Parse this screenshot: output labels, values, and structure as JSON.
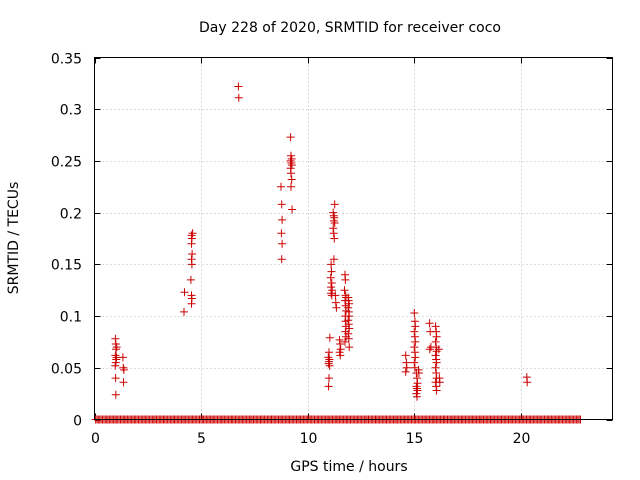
{
  "chart_data": {
    "type": "scatter",
    "title": "Day 228 of 2020, SRMTID for receiver coco",
    "xlabel": "GPS time / hours",
    "ylabel": "SRMTID / TECUs",
    "xlim": [
      0,
      24.3
    ],
    "ylim": [
      0,
      0.35
    ],
    "xticks": [
      0,
      5,
      10,
      15,
      20
    ],
    "xtick_labels": [
      "0",
      "5",
      "10",
      "15",
      "20"
    ],
    "yticks": [
      0,
      0.05,
      0.1,
      0.15,
      0.2,
      0.25,
      0.3,
      0.35
    ],
    "ytick_labels": [
      "0",
      "0.05",
      "0.1",
      "0.15",
      "0.2",
      "0.25",
      "0.3",
      "0.35"
    ],
    "grid": true,
    "marker": "+",
    "marker_color": "#cc0000",
    "baseline": {
      "x_start": 0.05,
      "x_end": 22.85,
      "x_step": 0.065,
      "y": 0
    },
    "points": [
      [
        0.98,
        0.078
      ],
      [
        1.0,
        0.073
      ],
      [
        1.01,
        0.068
      ],
      [
        0.98,
        0.062
      ],
      [
        1.02,
        0.058
      ],
      [
        1.0,
        0.055
      ],
      [
        0.97,
        0.052
      ],
      [
        1.03,
        0.06
      ],
      [
        0.99,
        0.04
      ],
      [
        1.0,
        0.024
      ],
      [
        1.04,
        0.07
      ],
      [
        1.33,
        0.06
      ],
      [
        1.35,
        0.05
      ],
      [
        1.38,
        0.048
      ],
      [
        1.36,
        0.036
      ],
      [
        4.22,
        0.123
      ],
      [
        4.2,
        0.104
      ],
      [
        4.55,
        0.178
      ],
      [
        4.57,
        0.175
      ],
      [
        4.55,
        0.17
      ],
      [
        4.58,
        0.16
      ],
      [
        4.55,
        0.155
      ],
      [
        4.57,
        0.15
      ],
      [
        4.52,
        0.135
      ],
      [
        4.55,
        0.12
      ],
      [
        4.57,
        0.117
      ],
      [
        4.55,
        0.112
      ],
      [
        4.6,
        0.18
      ],
      [
        6.75,
        0.322
      ],
      [
        6.77,
        0.311
      ],
      [
        8.75,
        0.225
      ],
      [
        8.78,
        0.208
      ],
      [
        8.8,
        0.193
      ],
      [
        8.77,
        0.18
      ],
      [
        8.8,
        0.17
      ],
      [
        8.78,
        0.155
      ],
      [
        9.2,
        0.273
      ],
      [
        9.22,
        0.255
      ],
      [
        9.25,
        0.252
      ],
      [
        9.2,
        0.25
      ],
      [
        9.23,
        0.248
      ],
      [
        9.26,
        0.246
      ],
      [
        9.2,
        0.243
      ],
      [
        9.22,
        0.238
      ],
      [
        9.25,
        0.232
      ],
      [
        9.22,
        0.225
      ],
      [
        9.27,
        0.203
      ],
      [
        11.0,
        0.065
      ],
      [
        10.97,
        0.06
      ],
      [
        11.02,
        0.058
      ],
      [
        11.0,
        0.056
      ],
      [
        10.98,
        0.054
      ],
      [
        11.03,
        0.052
      ],
      [
        11.0,
        0.04
      ],
      [
        10.98,
        0.032
      ],
      [
        11.04,
        0.079
      ],
      [
        11.1,
        0.15
      ],
      [
        11.12,
        0.143
      ],
      [
        11.08,
        0.137
      ],
      [
        11.13,
        0.132
      ],
      [
        11.1,
        0.128
      ],
      [
        11.15,
        0.125
      ],
      [
        11.1,
        0.122
      ],
      [
        11.13,
        0.12
      ],
      [
        11.2,
        0.2
      ],
      [
        11.22,
        0.197
      ],
      [
        11.25,
        0.195
      ],
      [
        11.23,
        0.192
      ],
      [
        11.27,
        0.19
      ],
      [
        11.2,
        0.185
      ],
      [
        11.22,
        0.18
      ],
      [
        11.25,
        0.175
      ],
      [
        11.27,
        0.208
      ],
      [
        11.23,
        0.155
      ],
      [
        11.3,
        0.12
      ],
      [
        11.32,
        0.113
      ],
      [
        11.35,
        0.108
      ],
      [
        11.5,
        0.077
      ],
      [
        11.52,
        0.073
      ],
      [
        11.55,
        0.068
      ],
      [
        11.5,
        0.065
      ],
      [
        11.53,
        0.062
      ],
      [
        11.75,
        0.14
      ],
      [
        11.77,
        0.135
      ],
      [
        11.73,
        0.125
      ],
      [
        11.78,
        0.12
      ],
      [
        11.8,
        0.118
      ],
      [
        11.75,
        0.115
      ],
      [
        11.78,
        0.11
      ],
      [
        11.8,
        0.105
      ],
      [
        11.76,
        0.1
      ],
      [
        11.78,
        0.095
      ],
      [
        11.8,
        0.09
      ],
      [
        11.77,
        0.085
      ],
      [
        11.8,
        0.08
      ],
      [
        11.75,
        0.075
      ],
      [
        11.9,
        0.118
      ],
      [
        11.92,
        0.115
      ],
      [
        11.95,
        0.112
      ],
      [
        11.9,
        0.108
      ],
      [
        11.93,
        0.104
      ],
      [
        11.95,
        0.1
      ],
      [
        11.9,
        0.096
      ],
      [
        11.93,
        0.092
      ],
      [
        11.95,
        0.088
      ],
      [
        11.9,
        0.083
      ],
      [
        11.93,
        0.078
      ],
      [
        11.95,
        0.07
      ],
      [
        14.6,
        0.062
      ],
      [
        14.63,
        0.055
      ],
      [
        14.65,
        0.05
      ],
      [
        14.6,
        0.046
      ],
      [
        15.0,
        0.103
      ],
      [
        15.03,
        0.095
      ],
      [
        15.05,
        0.09
      ],
      [
        15.0,
        0.085
      ],
      [
        15.03,
        0.08
      ],
      [
        15.05,
        0.075
      ],
      [
        15.0,
        0.07
      ],
      [
        15.03,
        0.065
      ],
      [
        15.05,
        0.06
      ],
      [
        15.0,
        0.055
      ],
      [
        15.03,
        0.05
      ],
      [
        15.1,
        0.045
      ],
      [
        15.13,
        0.04
      ],
      [
        15.15,
        0.035
      ],
      [
        15.1,
        0.032
      ],
      [
        15.13,
        0.03
      ],
      [
        15.15,
        0.028
      ],
      [
        15.1,
        0.025
      ],
      [
        15.13,
        0.022
      ],
      [
        15.2,
        0.048
      ],
      [
        15.22,
        0.045
      ],
      [
        15.72,
        0.093
      ],
      [
        15.75,
        0.085
      ],
      [
        15.78,
        0.07
      ],
      [
        15.73,
        0.068
      ],
      [
        16.0,
        0.09
      ],
      [
        16.03,
        0.085
      ],
      [
        16.05,
        0.08
      ],
      [
        16.0,
        0.075
      ],
      [
        16.03,
        0.07
      ],
      [
        16.05,
        0.066
      ],
      [
        16.0,
        0.062
      ],
      [
        16.03,
        0.058
      ],
      [
        16.05,
        0.055
      ],
      [
        16.0,
        0.05
      ],
      [
        16.03,
        0.045
      ],
      [
        16.05,
        0.04
      ],
      [
        16.0,
        0.036
      ],
      [
        16.03,
        0.032
      ],
      [
        16.05,
        0.028
      ],
      [
        16.15,
        0.068
      ],
      [
        16.18,
        0.04
      ],
      [
        16.2,
        0.036
      ],
      [
        20.28,
        0.041
      ],
      [
        20.3,
        0.036
      ]
    ]
  }
}
